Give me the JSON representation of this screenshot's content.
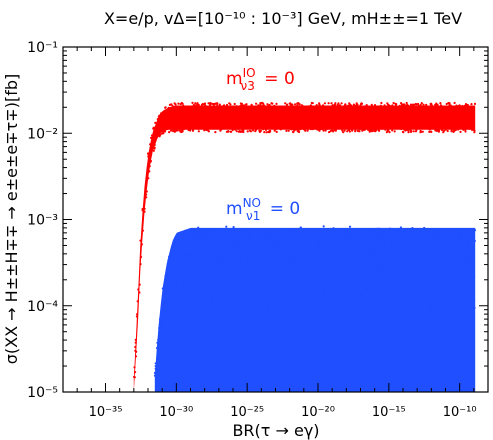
{
  "chart_data": {
    "type": "scatter",
    "title": "X=e/p, vΔ=[10⁻¹⁰ : 10⁻³] GeV, mH±±=1 TeV",
    "xlabel": "BR(τ → eγ)",
    "ylabel": "σ(XX → H±±H∓∓ → e±e±e∓τ∓)[fb]",
    "x_scale": "log",
    "y_scale": "log",
    "xlim": [
      1e-38,
      1e-08
    ],
    "ylim": [
      1e-05,
      0.1
    ],
    "x_ticks": [
      {
        "value": 1e-35,
        "label": "10⁻³⁵"
      },
      {
        "value": 1e-30,
        "label": "10⁻³⁰"
      },
      {
        "value": 1e-25,
        "label": "10⁻²⁵"
      },
      {
        "value": 1e-20,
        "label": "10⁻²⁰"
      },
      {
        "value": 1e-15,
        "label": "10⁻¹⁵"
      },
      {
        "value": 1e-10,
        "label": "10⁻¹⁰"
      }
    ],
    "y_ticks": [
      {
        "value": 1e-05,
        "label": "10⁻⁵"
      },
      {
        "value": 0.0001,
        "label": "10⁻⁴"
      },
      {
        "value": 0.001,
        "label": "10⁻³"
      },
      {
        "value": 0.01,
        "label": "10⁻²"
      },
      {
        "value": 0.1,
        "label": "10⁻¹"
      }
    ],
    "grid": false,
    "series": [
      {
        "color": "#ff0000",
        "annotation": "m_ν3^IO = 0",
        "band": [
          {
            "x": 1e-33,
            "ymin": 1e-05,
            "ymax": 1.4e-05
          },
          {
            "x": 2e-33,
            "ymin": 7e-05,
            "ymax": 0.00014
          },
          {
            "x": 3e-33,
            "ymin": 0.0003,
            "ymax": 0.0006
          },
          {
            "x": 5e-33,
            "ymin": 0.001,
            "ymax": 0.002
          },
          {
            "x": 1e-32,
            "ymin": 0.003,
            "ymax": 0.0055
          },
          {
            "x": 2e-32,
            "ymin": 0.006,
            "ymax": 0.01
          },
          {
            "x": 5e-32,
            "ymin": 0.009,
            "ymax": 0.015
          },
          {
            "x": 1e-31,
            "ymin": 0.0105,
            "ymax": 0.018
          },
          {
            "x": 3e-31,
            "ymin": 0.011,
            "ymax": 0.02
          },
          {
            "x": 1e-30,
            "ymin": 0.011,
            "ymax": 0.021
          },
          {
            "x": 1.25e-09,
            "ymin": 0.011,
            "ymax": 0.021
          }
        ]
      },
      {
        "color": "#1f4fff",
        "annotation": "m_ν1^NO = 0",
        "band": [
          {
            "x": 3e-32,
            "ymin": 1e-05,
            "ymax": 1.5e-05
          },
          {
            "x": 5e-32,
            "ymin": 1e-05,
            "ymax": 5e-05
          },
          {
            "x": 1e-31,
            "ymin": 1e-05,
            "ymax": 0.00015
          },
          {
            "x": 2e-31,
            "ymin": 1e-05,
            "ymax": 0.0003
          },
          {
            "x": 5e-31,
            "ymin": 1e-05,
            "ymax": 0.00055
          },
          {
            "x": 1e-30,
            "ymin": 1e-05,
            "ymax": 0.0007
          },
          {
            "x": 1e-29,
            "ymin": 1e-05,
            "ymax": 0.0008
          },
          {
            "x": 1.25e-09,
            "ymin": 1e-05,
            "ymax": 0.0008
          }
        ]
      }
    ]
  }
}
